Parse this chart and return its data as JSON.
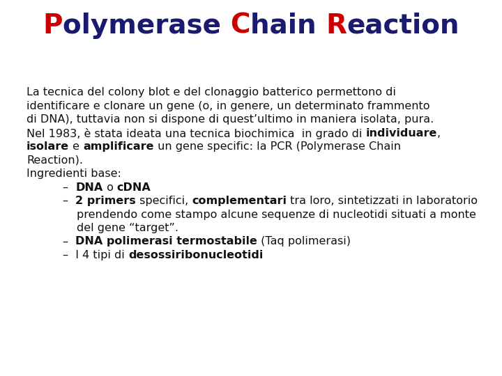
{
  "background_color": "#ffffff",
  "title_parts": [
    {
      "text": "P",
      "color": "#cc0000",
      "bold": true
    },
    {
      "text": "olymerase ",
      "color": "#1a1a6e",
      "bold": true
    },
    {
      "text": "C",
      "color": "#cc0000",
      "bold": true
    },
    {
      "text": "hain ",
      "color": "#1a1a6e",
      "bold": true
    },
    {
      "text": "R",
      "color": "#cc0000",
      "bold": true
    },
    {
      "text": "eaction",
      "color": "#1a1a6e",
      "bold": true
    }
  ],
  "title_fontsize": 28,
  "body_fontsize": 11.5,
  "body_color": "#111111",
  "title_dark": "#1a1a6e",
  "title_red": "#cc0000"
}
